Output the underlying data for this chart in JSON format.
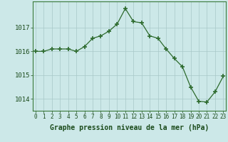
{
  "x": [
    0,
    1,
    2,
    3,
    4,
    5,
    6,
    7,
    8,
    9,
    10,
    11,
    12,
    13,
    14,
    15,
    16,
    17,
    18,
    19,
    20,
    21,
    22,
    23
  ],
  "y": [
    1016.0,
    1016.0,
    1016.1,
    1016.1,
    1016.1,
    1016.0,
    1016.2,
    1016.55,
    1016.65,
    1016.85,
    1017.15,
    1017.8,
    1017.25,
    1017.2,
    1016.65,
    1016.55,
    1016.1,
    1015.7,
    1015.35,
    1014.5,
    1013.9,
    1013.87,
    1014.3,
    1014.95
  ],
  "line_color": "#2d6a2d",
  "marker": "+",
  "marker_size": 4,
  "marker_lw": 1.2,
  "background_color": "#cce8e8",
  "grid_color": "#a8c8c8",
  "xlabel": "Graphe pression niveau de la mer (hPa)",
  "xlabel_fontsize": 7,
  "xlabel_color": "#1a4a1a",
  "tick_label_color": "#1a4a1a",
  "ytick_fontsize": 6.5,
  "xtick_fontsize": 5.5,
  "yticks": [
    1014,
    1015,
    1016,
    1017
  ],
  "ylim": [
    1013.5,
    1018.1
  ],
  "xlim": [
    -0.3,
    23.3
  ],
  "fig_bg": "#cce8e8",
  "border_color": "#2d6a2d",
  "spine_color": "#3a7a3a"
}
